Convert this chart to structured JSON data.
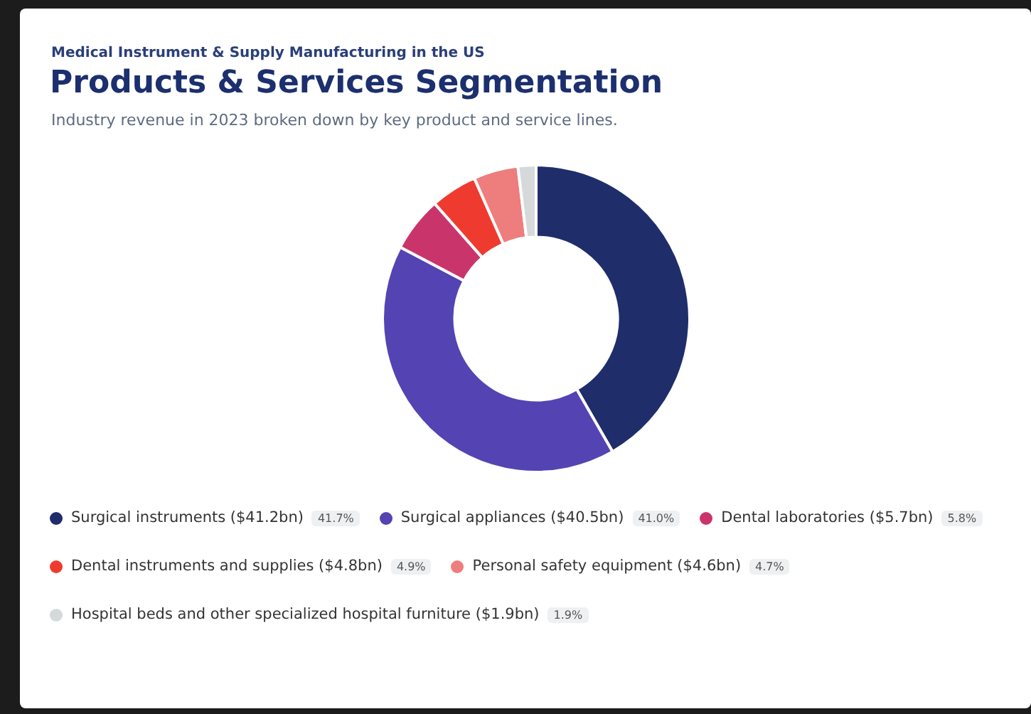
{
  "chart_data": {
    "type": "donut",
    "subtitle": "Medical Instrument & Supply Manufacturing in the US",
    "title": "Products & Services Segmentation",
    "annotations": [
      "Industry revenue in 2023 broken down by key product and service lines."
    ],
    "categories": [
      "Surgical instruments ($41.2bn)",
      "Surgical appliances ($40.5bn)",
      "Dental laboratories ($5.7bn)",
      "Dental instruments and supplies ($4.8bn)",
      "Personal safety equipment ($4.6bn)",
      "Hospital beds and other specialized hospital furniture ($1.9bn)"
    ],
    "values": [
      41.7,
      41.0,
      5.8,
      4.9,
      4.7,
      1.9
    ],
    "value_labels": [
      "41.7%",
      "41.0%",
      "5.8%",
      "4.9%",
      "4.7%",
      "1.9%"
    ],
    "colors": [
      "#1f2d6b",
      "#5443b3",
      "#c9356b",
      "#ef3b2f",
      "#ee7d7d",
      "#d6d9d9"
    ],
    "legend": "bottom"
  }
}
